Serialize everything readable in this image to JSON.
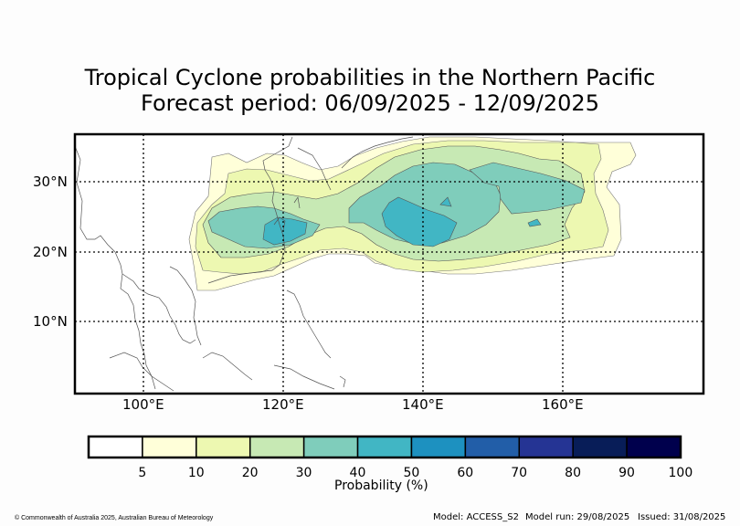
{
  "title": {
    "line1": "Tropical Cyclone probabilities in the Northern Pacific",
    "line2": "Forecast period: 06/09/2025 - 12/09/2025"
  },
  "map": {
    "region": "Northern Pacific",
    "lon_range": [
      90,
      180
    ],
    "lat_range": [
      0,
      37
    ],
    "lon_ticks": [
      "100°E",
      "120°E",
      "140°E",
      "160°E"
    ],
    "lat_ticks": [
      "30°N",
      "20°N",
      "10°N"
    ],
    "gridlines": "dotted"
  },
  "colorbar": {
    "label": "Probability (%)",
    "ticks": [
      "5",
      "10",
      "20",
      "30",
      "40",
      "50",
      "60",
      "70",
      "80",
      "90",
      "100"
    ],
    "colors": [
      "#ffffff",
      "#ffffd9",
      "#edf8b1",
      "#c7e9b4",
      "#7fcdbb",
      "#41b6c4",
      "#1d91c0",
      "#225ea8",
      "#253494",
      "#081d58",
      "#00004d"
    ]
  },
  "footer": {
    "copyright": "© Commonwealth of Australia 2025, Australian Bureau of Meteorology",
    "model": "Model: ACCESS_S2",
    "model_run": "Model run: 29/08/2025",
    "issued": "Issued: 31/08/2025"
  }
}
